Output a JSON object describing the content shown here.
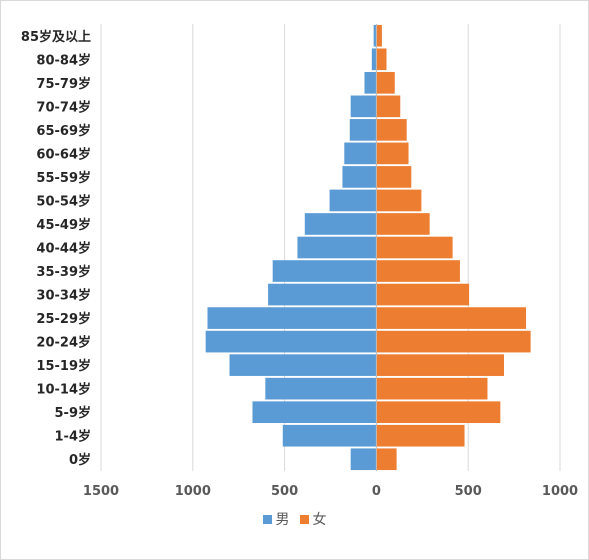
{
  "chart_data": {
    "type": "bar",
    "orientation": "horizontal",
    "subtype": "population-pyramid",
    "categories": [
      "0岁",
      "1-4岁",
      "5-9岁",
      "10-14岁",
      "15-19岁",
      "20-24岁",
      "25-29岁",
      "30-34岁",
      "35-39岁",
      "40-44岁",
      "45-49岁",
      "50-54岁",
      "55-59岁",
      "60-64岁",
      "65-69岁",
      "70-74岁",
      "75-79岁",
      "80-84岁",
      "85岁及以上"
    ],
    "series": [
      {
        "name": "男",
        "color": "#5b9bd5",
        "values": [
          -140,
          -510,
          -675,
          -605,
          -800,
          -930,
          -920,
          -590,
          -565,
          -430,
          -390,
          -255,
          -185,
          -175,
          -145,
          -140,
          -65,
          -25,
          -15
        ]
      },
      {
        "name": "女",
        "color": "#ed7d31",
        "values": [
          110,
          480,
          675,
          605,
          695,
          840,
          815,
          505,
          455,
          415,
          290,
          245,
          190,
          175,
          165,
          130,
          100,
          55,
          30
        ]
      }
    ],
    "xlim": [
      -1500,
      1000
    ],
    "xticks": [
      -1500,
      -1000,
      -500,
      0,
      500,
      1000
    ],
    "xtick_labels": [
      "1500",
      "1000",
      "500",
      "0",
      "500",
      "1000"
    ],
    "grid": true,
    "legend_position": "bottom"
  }
}
